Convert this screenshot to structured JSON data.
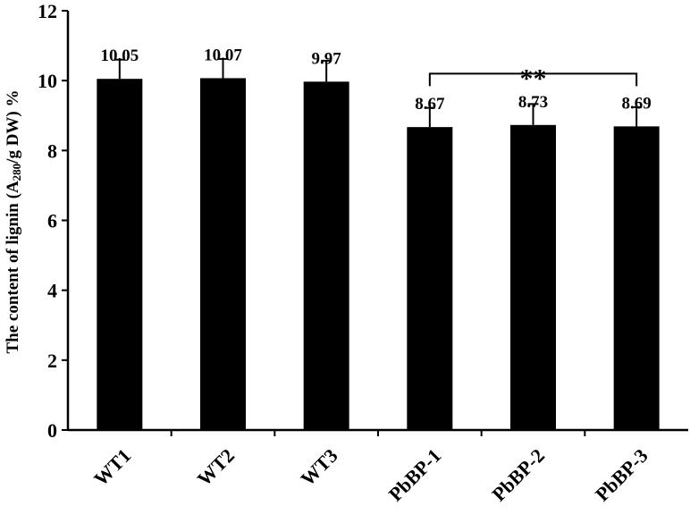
{
  "chart_data": {
    "type": "bar",
    "categories": [
      "WT1",
      "WT2",
      "WT3",
      "PbBP-1",
      "PbBP-2",
      "PbBP-3"
    ],
    "values": [
      10.05,
      10.07,
      9.97,
      8.67,
      8.73,
      8.69
    ],
    "error": [
      0.55,
      0.55,
      0.6,
      0.55,
      0.6,
      0.55
    ],
    "data_labels": [
      "10.05",
      "10.07",
      "9.97",
      "8.67",
      "8.73",
      "8.69"
    ],
    "ylabel": {
      "prefix": "The content of lignin (A",
      "subscript": "280",
      "suffix": "/g DW) %"
    },
    "ylim": [
      0,
      12
    ],
    "yticks": [
      0,
      2,
      4,
      6,
      8,
      10,
      12
    ],
    "grid": false,
    "significance": {
      "label": "**",
      "from_category": "PbBP-1",
      "to_category": "PbBP-3",
      "y": 10.2
    },
    "colors": {
      "bar": "#000000",
      "axis": "#000000"
    }
  }
}
